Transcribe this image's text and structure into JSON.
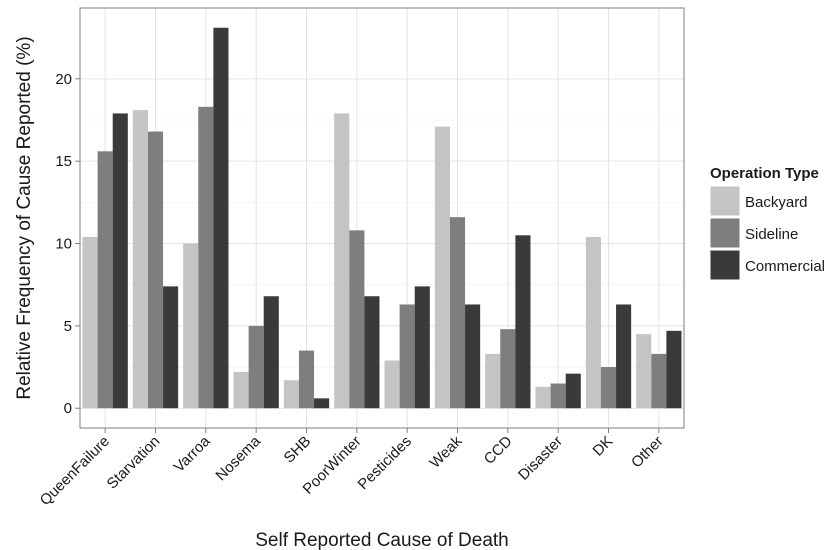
{
  "chart_data": {
    "type": "bar",
    "xlabel": "Self Reported Cause of Death",
    "ylabel": "Relative Frequency of Cause Reported (%)",
    "categories": [
      "QueenFailure",
      "Starvation",
      "Varroa",
      "Nosema",
      "SHB",
      "PoorWinter",
      "Pesticides",
      "Weak",
      "CCD",
      "Disaster",
      "DK",
      "Other"
    ],
    "series": [
      {
        "name": "Backyard",
        "color": "#c4c4c4",
        "values": [
          10.4,
          18.1,
          10.0,
          2.2,
          1.7,
          17.9,
          2.9,
          17.1,
          3.3,
          1.3,
          10.4,
          4.5
        ]
      },
      {
        "name": "Sideline",
        "color": "#7e7e7e",
        "values": [
          15.6,
          16.8,
          18.3,
          5.0,
          3.5,
          10.8,
          6.3,
          11.6,
          4.8,
          1.5,
          2.5,
          3.3
        ]
      },
      {
        "name": "Commercial",
        "color": "#3a3a3a",
        "values": [
          17.9,
          7.4,
          23.1,
          6.8,
          0.6,
          6.8,
          7.4,
          6.3,
          10.5,
          2.1,
          6.3,
          4.7
        ]
      }
    ],
    "ylim": [
      -1.2,
      24.3
    ],
    "yticks": [
      0,
      5,
      10,
      15,
      20
    ],
    "grid": true,
    "legend": {
      "title": "Operation Type",
      "position": "right"
    }
  }
}
